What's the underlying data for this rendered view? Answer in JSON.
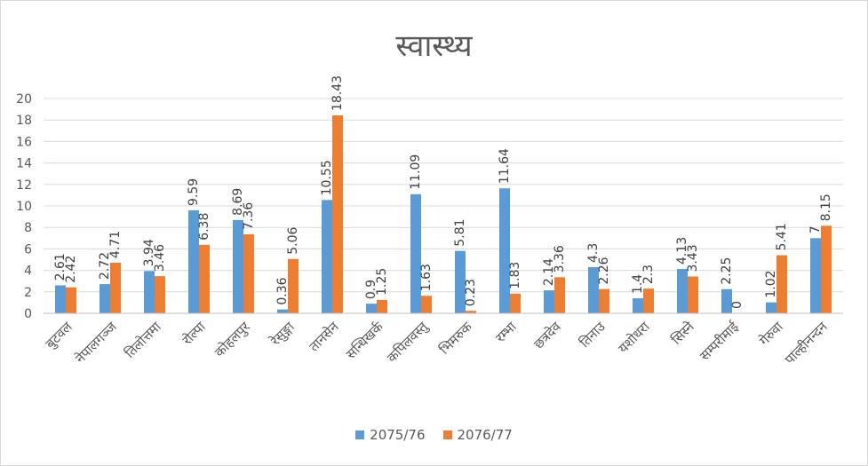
{
  "chart_data": {
    "type": "bar",
    "title": "स्वास्थ्य",
    "xlabel": "",
    "ylabel": "",
    "ylim": [
      0,
      20
    ],
    "yticks": [
      0,
      2,
      4,
      6,
      8,
      10,
      12,
      14,
      16,
      18,
      20
    ],
    "grid": true,
    "legend_position": "bottom",
    "categories": [
      "बुटवल",
      "नेपालगञ्ज",
      "तिलोत्तमा",
      "रोल्पा",
      "कोहलपुर",
      "रेसुङ्गा",
      "तानसेन",
      "सन्धिखर्क",
      "कपिलवस्तु",
      "भिमरुक",
      "रम्भा",
      "छत्रदेव",
      "तिनाउ",
      "यशोधरा",
      "सिस्ने",
      "सम्परीमाई",
      "गेरुवा",
      "पाल्हीनन्दन"
    ],
    "series": [
      {
        "name": "2075/76",
        "color": "#5b9bd5",
        "values": [
          2.61,
          2.72,
          3.94,
          9.59,
          8.69,
          0.36,
          10.55,
          0.9,
          11.09,
          5.81,
          11.64,
          2.14,
          4.3,
          1.4,
          4.13,
          2.25,
          1.02,
          7
        ]
      },
      {
        "name": "2076/77",
        "color": "#ed7d31",
        "values": [
          2.42,
          4.71,
          3.46,
          6.38,
          7.36,
          5.06,
          18.43,
          1.25,
          1.63,
          0.23,
          1.83,
          3.36,
          2.26,
          2.3,
          3.43,
          0,
          5.41,
          8.15
        ]
      }
    ]
  }
}
